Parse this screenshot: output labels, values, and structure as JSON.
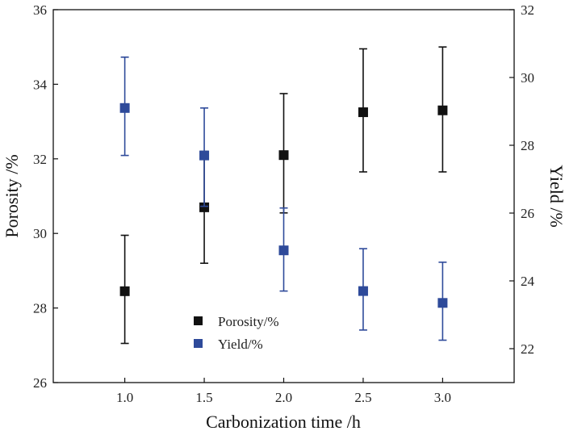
{
  "chart_data": {
    "type": "scatter",
    "xlabel": "Carbonization time /h",
    "ylabel_left": "Porosity /%",
    "ylabel_right": "Yield /%",
    "x_ticks": [
      "1.0",
      "1.5",
      "2.0",
      "2.5",
      "3.0"
    ],
    "xlim": [
      0.55,
      3.45
    ],
    "ylim_left": [
      26,
      36
    ],
    "ylim_right": [
      21,
      32
    ],
    "y_ticks_left": [
      "26",
      "28",
      "30",
      "32",
      "34",
      "36"
    ],
    "y_ticks_right": [
      "22",
      "24",
      "26",
      "28",
      "30",
      "32"
    ],
    "legend_position": "bottom-center",
    "series": [
      {
        "name": "Porosity/%",
        "axis": "left",
        "color": "#111111",
        "marker": "square",
        "x": [
          1.0,
          1.5,
          2.0,
          2.5,
          3.0
        ],
        "y": [
          28.45,
          30.7,
          32.1,
          33.25,
          33.3
        ],
        "err_low": [
          27.05,
          29.2,
          30.55,
          31.65,
          31.65
        ],
        "err_high": [
          29.95,
          32.2,
          33.75,
          34.95,
          35.0
        ]
      },
      {
        "name": "Yield/%",
        "axis": "right",
        "color": "#2e4a9a",
        "marker": "square",
        "x": [
          1.0,
          1.5,
          2.0,
          2.5,
          3.0
        ],
        "y": [
          29.1,
          27.7,
          24.9,
          23.7,
          23.35
        ],
        "err_low": [
          27.7,
          26.2,
          23.7,
          22.55,
          22.25
        ],
        "err_high": [
          30.6,
          29.1,
          26.15,
          24.95,
          24.55
        ]
      }
    ]
  }
}
